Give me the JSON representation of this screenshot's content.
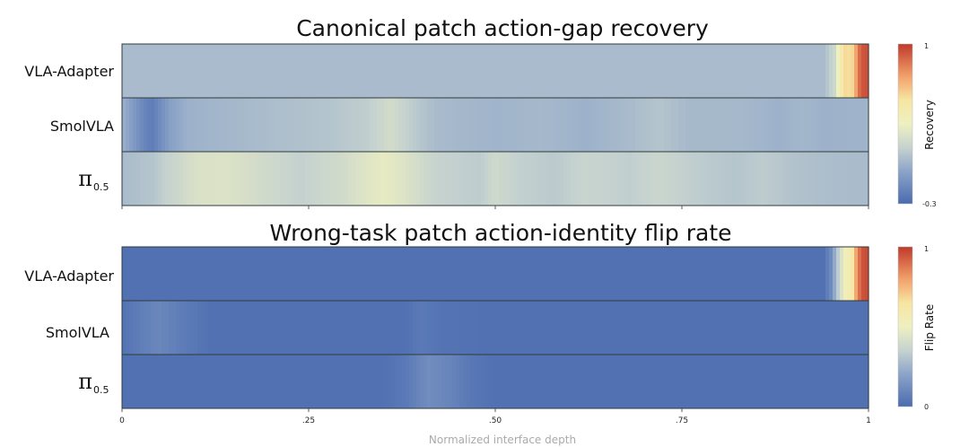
{
  "chart_data": [
    {
      "type": "heatmap",
      "title": "Canonical patch action-gap recovery",
      "rows": [
        "VLA-Adapter",
        "SmolVLA",
        "π0.5"
      ],
      "colorbar": {
        "label": "Recovery",
        "min": -0.3,
        "max": 1,
        "min_label": "-0.3",
        "max_label": "1"
      },
      "x_axis": {
        "ticks": [
          0,
          0.25,
          0.5,
          0.75,
          1
        ],
        "range": [
          0,
          1
        ]
      },
      "profiles": [
        {
          "row": "VLA-Adapter",
          "points": [
            [
              0,
              0.06
            ],
            [
              0.94,
              0.06
            ],
            [
              0.955,
              0.2
            ],
            [
              0.962,
              0.45
            ],
            [
              0.97,
              0.6
            ],
            [
              0.975,
              0.55
            ],
            [
              0.98,
              0.6
            ],
            [
              0.985,
              0.8
            ],
            [
              0.99,
              0.92
            ],
            [
              1,
              0.95
            ]
          ]
        },
        {
          "row": "SmolVLA",
          "points": [
            [
              0,
              0.02
            ],
            [
              0.015,
              -0.08
            ],
            [
              0.03,
              -0.18
            ],
            [
              0.04,
              -0.22
            ],
            [
              0.05,
              -0.15
            ],
            [
              0.065,
              -0.05
            ],
            [
              0.09,
              0.02
            ],
            [
              0.2,
              0.07
            ],
            [
              0.28,
              0.1
            ],
            [
              0.33,
              0.14
            ],
            [
              0.36,
              0.22
            ],
            [
              0.385,
              0.14
            ],
            [
              0.42,
              0.06
            ],
            [
              0.5,
              0.03
            ],
            [
              0.56,
              0.05
            ],
            [
              0.62,
              0.02
            ],
            [
              0.68,
              0.06
            ],
            [
              0.72,
              0.1
            ],
            [
              0.76,
              0.05
            ],
            [
              0.83,
              0.05
            ],
            [
              0.88,
              0.02
            ],
            [
              0.91,
              0.04
            ],
            [
              0.94,
              0.02
            ],
            [
              1,
              0.03
            ]
          ]
        },
        {
          "row": "π0.5",
          "points": [
            [
              0,
              0.06
            ],
            [
              0.04,
              0.1
            ],
            [
              0.07,
              0.18
            ],
            [
              0.1,
              0.25
            ],
            [
              0.14,
              0.26
            ],
            [
              0.18,
              0.22
            ],
            [
              0.24,
              0.15
            ],
            [
              0.3,
              0.22
            ],
            [
              0.35,
              0.32
            ],
            [
              0.38,
              0.26
            ],
            [
              0.42,
              0.16
            ],
            [
              0.48,
              0.13
            ],
            [
              0.5,
              0.2
            ],
            [
              0.53,
              0.15
            ],
            [
              0.58,
              0.12
            ],
            [
              0.62,
              0.17
            ],
            [
              0.68,
              0.14
            ],
            [
              0.72,
              0.18
            ],
            [
              0.76,
              0.14
            ],
            [
              0.82,
              0.1
            ],
            [
              0.86,
              0.13
            ],
            [
              0.9,
              0.09
            ],
            [
              0.95,
              0.07
            ],
            [
              1,
              0.06
            ]
          ]
        }
      ]
    },
    {
      "type": "heatmap",
      "title": "Wrong-task patch action-identity flip rate",
      "rows": [
        "VLA-Adapter",
        "SmolVLA",
        "π0.5"
      ],
      "colorbar": {
        "label": "Flip Rate",
        "min": 0,
        "max": 1,
        "min_label": "0",
        "max_label": "1"
      },
      "x_axis": {
        "ticks": [
          0,
          0.25,
          0.5,
          0.75,
          1
        ],
        "tick_labels": [
          "0",
          ".25",
          ".50",
          ".75",
          "1"
        ],
        "label": "Normalized interface depth",
        "range": [
          0,
          1
        ]
      },
      "profiles": [
        {
          "row": "VLA-Adapter",
          "points": [
            [
              0,
              0.02
            ],
            [
              0.94,
              0.02
            ],
            [
              0.95,
              0.12
            ],
            [
              0.96,
              0.35
            ],
            [
              0.97,
              0.55
            ],
            [
              0.978,
              0.6
            ],
            [
              0.985,
              0.85
            ],
            [
              0.992,
              0.95
            ],
            [
              1,
              0.97
            ]
          ]
        },
        {
          "row": "SmolVLA",
          "points": [
            [
              0,
              0.03
            ],
            [
              0.02,
              0.06
            ],
            [
              0.05,
              0.1
            ],
            [
              0.08,
              0.06
            ],
            [
              0.12,
              0.02
            ],
            [
              0.38,
              0.02
            ],
            [
              0.4,
              0.05
            ],
            [
              0.43,
              0.03
            ],
            [
              0.5,
              0.02
            ],
            [
              1,
              0.02
            ]
          ]
        },
        {
          "row": "π0.5",
          "points": [
            [
              0,
              0.02
            ],
            [
              0.35,
              0.02
            ],
            [
              0.38,
              0.05
            ],
            [
              0.41,
              0.12
            ],
            [
              0.44,
              0.09
            ],
            [
              0.47,
              0.04
            ],
            [
              0.5,
              0.02
            ],
            [
              1,
              0.02
            ]
          ]
        }
      ]
    }
  ]
}
